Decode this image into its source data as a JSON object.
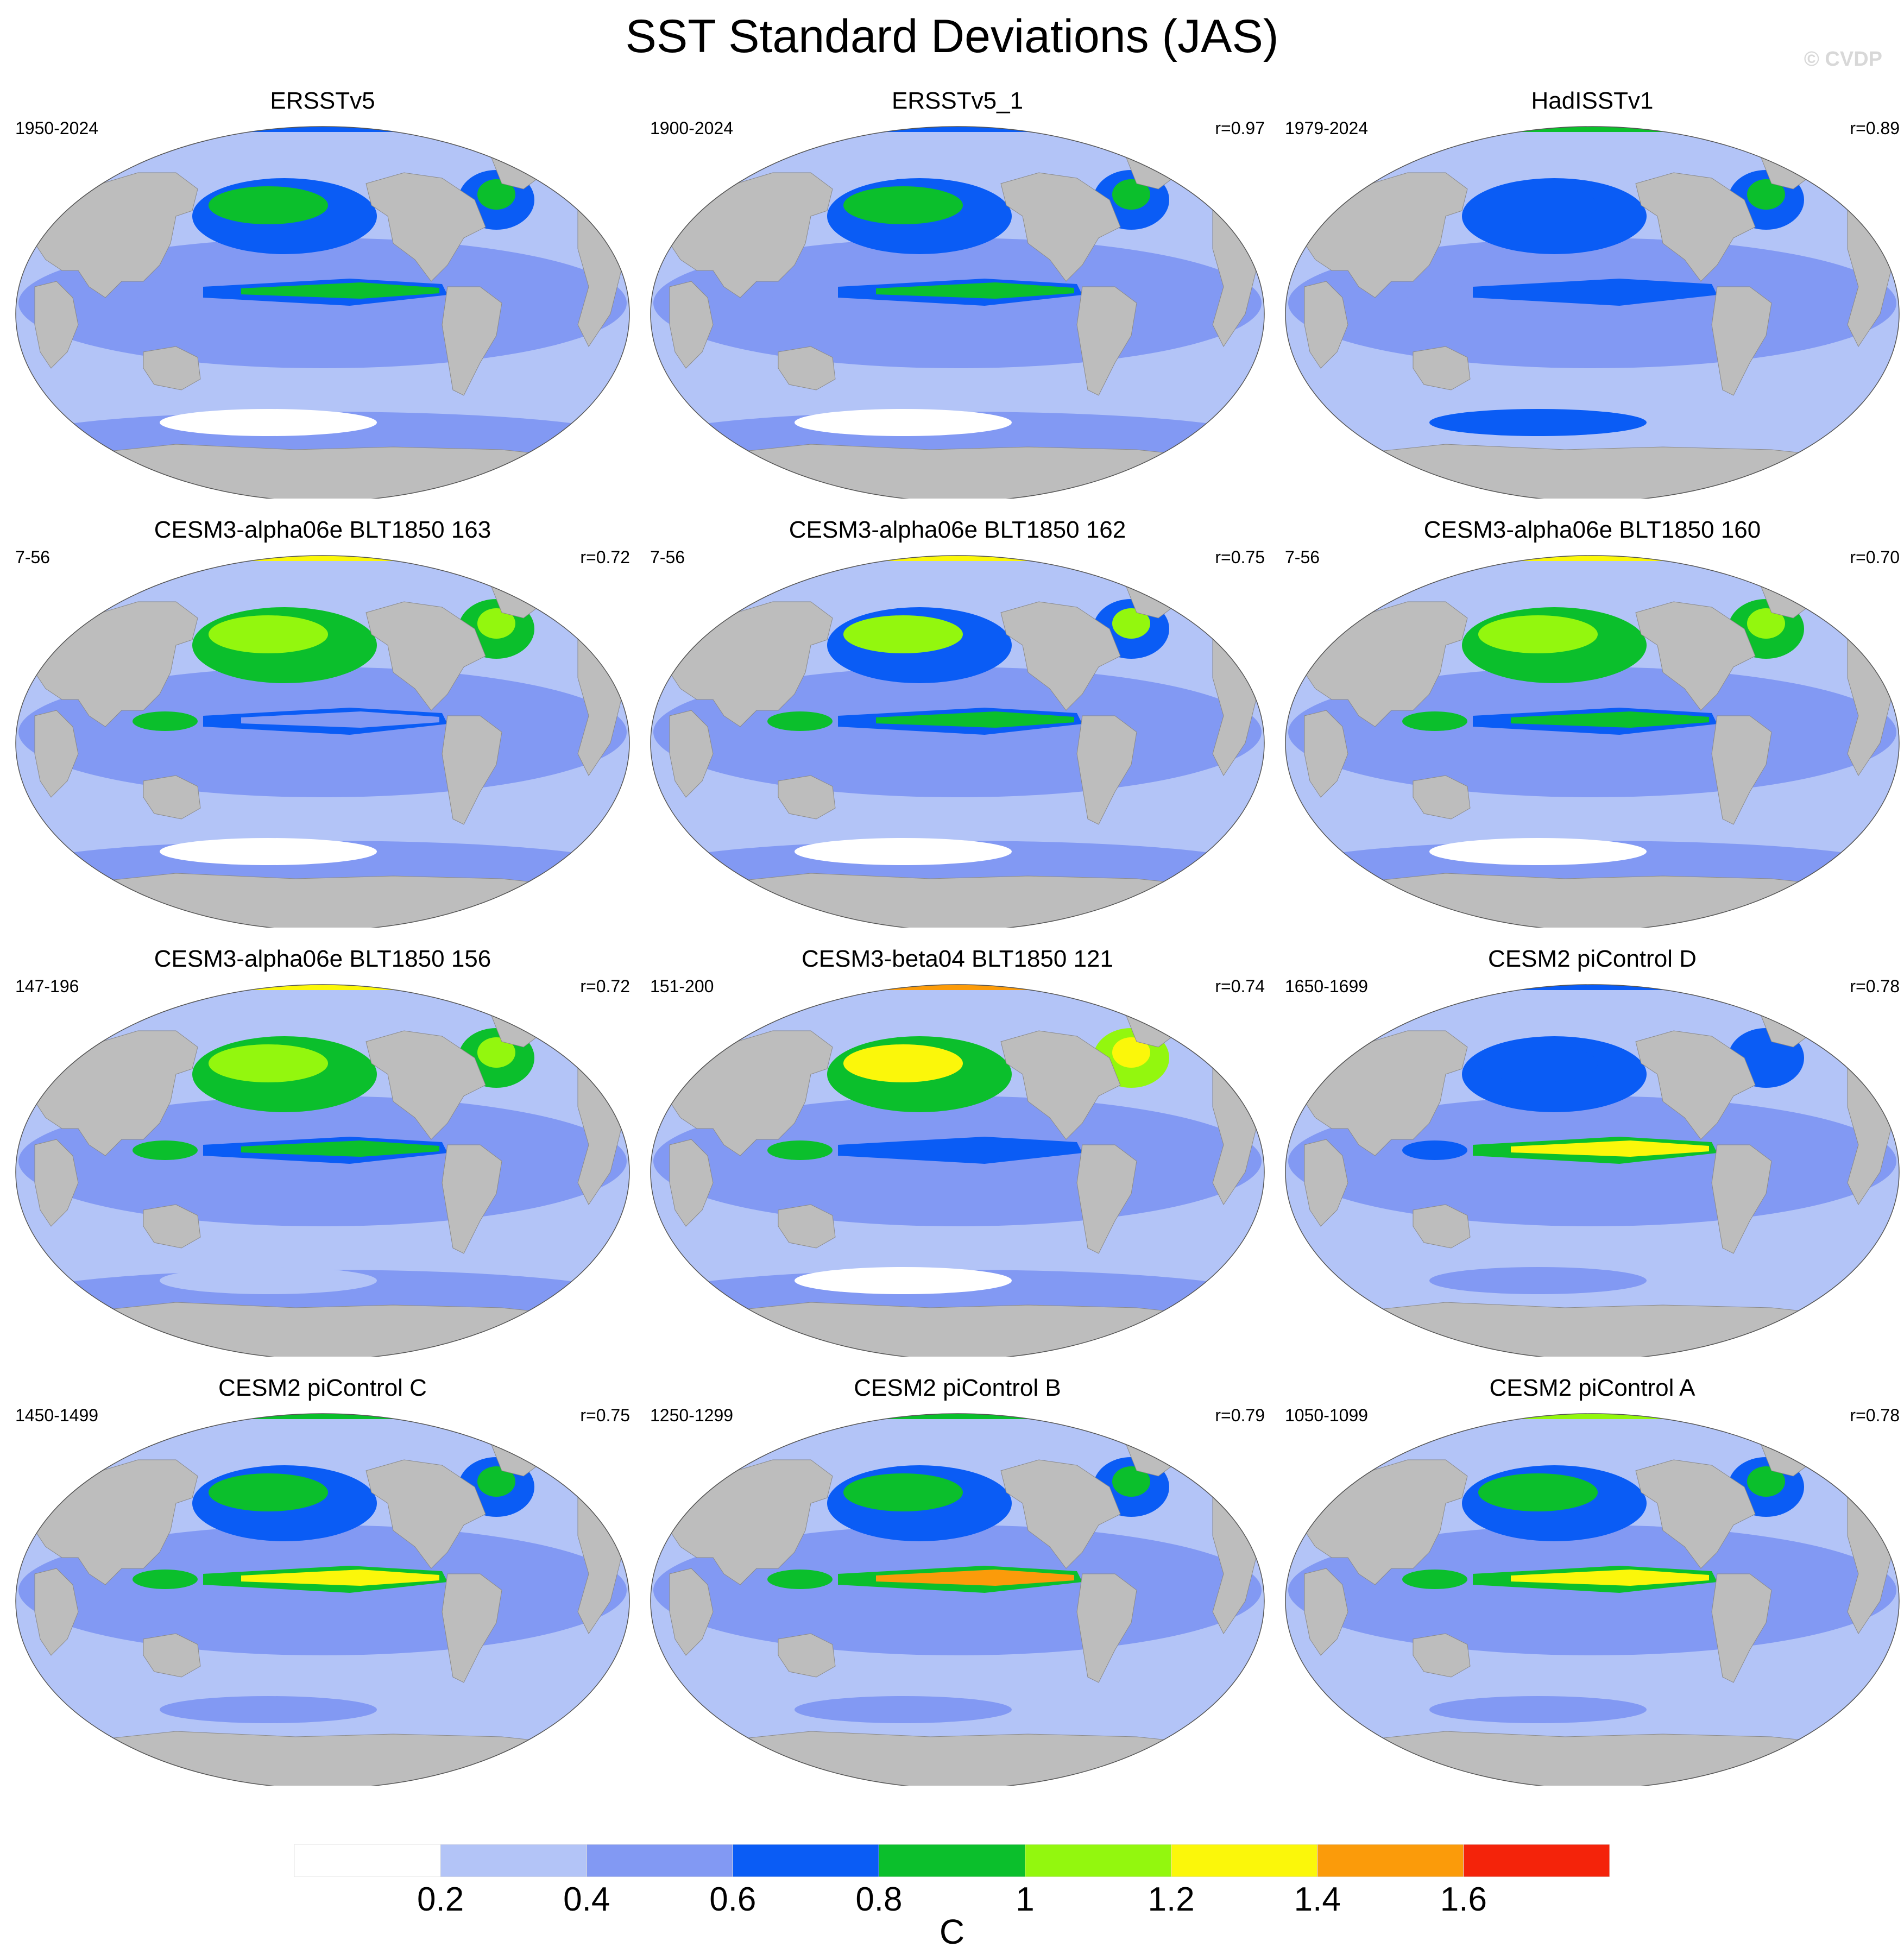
{
  "title": "SST Standard Deviations (JAS)",
  "copyright": "© CVDP",
  "units": "C",
  "colors": {
    "land": "#bdbdbd",
    "levels": [
      "#ffffff",
      "#b3c4f7",
      "#8299f3",
      "#0a5cf5",
      "#0bbf2c",
      "#93f70e",
      "#fbf70a",
      "#fb9b0a",
      "#f4230a"
    ]
  },
  "colorbar": {
    "labels": [
      "0.2",
      "0.4",
      "0.6",
      "0.8",
      "1",
      "1.2",
      "1.4",
      "1.6"
    ],
    "colors": [
      "#ffffff",
      "#b3c4f7",
      "#8299f3",
      "#0a5cf5",
      "#0bbf2c",
      "#93f70e",
      "#fbf70a",
      "#fb9b0a",
      "#f4230a"
    ]
  },
  "panels": [
    {
      "title": "ERSSTv5",
      "years": "1950-2024",
      "r": "",
      "enso": 0.85,
      "npac": 0.8,
      "natl": 0.8,
      "arctic": 0.7,
      "west": 0.2,
      "south": 0.45,
      "southwhite": 0.15
    },
    {
      "title": "ERSSTv5_1",
      "years": "1900-2024",
      "r": "r=0.97",
      "enso": 0.9,
      "npac": 0.95,
      "natl": 0.95,
      "arctic": 0.75,
      "west": 0.2,
      "south": 0.5,
      "southwhite": 0.1
    },
    {
      "title": "HadISSTv1",
      "years": "1979-2024",
      "r": "r=0.89",
      "enso": 0.75,
      "npac": 0.75,
      "natl": 0.8,
      "arctic": 0.9,
      "west": 0.15,
      "south": 0.3,
      "southwhite": 0.6
    },
    {
      "title": "CESM3-alpha06e BLT1850 163",
      "years": "7-56",
      "r": "r=0.72",
      "enso": 0.55,
      "npac": 1.1,
      "natl": 1.1,
      "arctic": 1.3,
      "west": 0.55,
      "south": 0.5,
      "southwhite": 0.15
    },
    {
      "title": "CESM3-alpha06e BLT1850 162",
      "years": "7-56",
      "r": "r=0.75",
      "enso": 0.9,
      "npac": 1.05,
      "natl": 1.0,
      "arctic": 1.3,
      "west": 0.5,
      "south": 0.55,
      "southwhite": 0.15
    },
    {
      "title": "CESM3-alpha06e BLT1850 160",
      "years": "7-56",
      "r": "r=0.70",
      "enso": 0.8,
      "npac": 1.1,
      "natl": 1.15,
      "arctic": 1.3,
      "west": 0.5,
      "south": 0.5,
      "southwhite": 0.15
    },
    {
      "title": "CESM3-alpha06e BLT1850 156",
      "years": "147-196",
      "r": "r=0.72",
      "enso": 0.8,
      "npac": 1.15,
      "natl": 1.1,
      "arctic": 1.3,
      "west": 0.6,
      "south": 0.5,
      "southwhite": 0.2
    },
    {
      "title": "CESM3-beta04 BLT1850 121",
      "years": "151-200",
      "r": "r=0.74",
      "enso": 0.75,
      "npac": 1.2,
      "natl": 1.3,
      "arctic": 1.5,
      "west": 0.55,
      "south": 0.55,
      "southwhite": 0.15
    },
    {
      "title": "CESM2 piControl D",
      "years": "1650-1699",
      "r": "r=0.78",
      "enso": 1.25,
      "npac": 0.75,
      "natl": 0.75,
      "arctic": 0.6,
      "west": 0.45,
      "south": 0.35,
      "southwhite": 0.4
    },
    {
      "title": "CESM2 piControl C",
      "years": "1450-1499",
      "r": "r=0.75",
      "enso": 1.3,
      "npac": 0.85,
      "natl": 0.85,
      "arctic": 0.9,
      "west": 0.5,
      "south": 0.35,
      "southwhite": 0.45
    },
    {
      "title": "CESM2 piControl B",
      "years": "1250-1299",
      "r": "r=0.79",
      "enso": 1.4,
      "npac": 0.95,
      "natl": 0.85,
      "arctic": 0.9,
      "west": 0.5,
      "south": 0.35,
      "southwhite": 0.45
    },
    {
      "title": "CESM2 piControl A",
      "years": "1050-1099",
      "r": "r=0.78",
      "enso": 1.3,
      "npac": 0.8,
      "natl": 0.85,
      "arctic": 1.0,
      "west": 0.5,
      "south": 0.35,
      "southwhite": 0.45
    }
  ]
}
